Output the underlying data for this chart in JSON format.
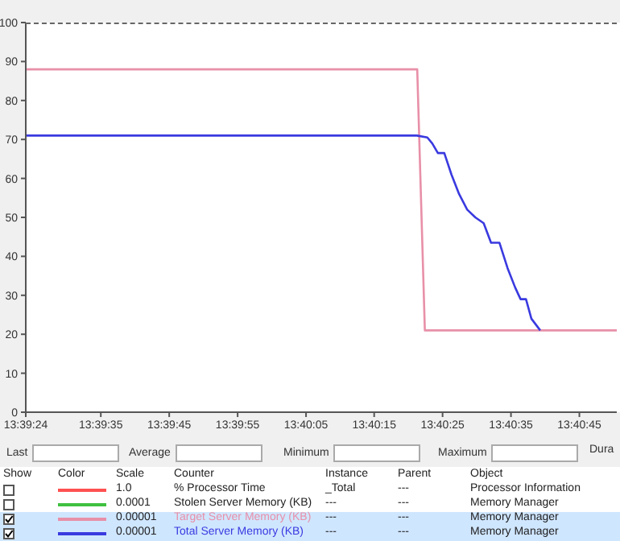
{
  "chart_data": {
    "type": "line",
    "series": [
      {
        "name": "Target Server Memory (KB)",
        "color": "#e890a8",
        "x": [
          13.65667,
          13.67258,
          13.67289,
          13.68069
        ],
        "values": [
          88,
          88,
          21,
          21
        ]
      },
      {
        "name": "Total Server Memory (KB)",
        "color": "#3a3ae0",
        "x": [
          13.65667,
          13.67256,
          13.67299,
          13.67319,
          13.67342,
          13.67368,
          13.67397,
          13.67428,
          13.67461,
          13.67494,
          13.67528,
          13.67558,
          13.67592,
          13.67625,
          13.67656,
          13.67678,
          13.677,
          13.67722,
          13.67758
        ],
        "values": [
          71,
          71,
          70.5,
          69,
          66.5,
          66.5,
          61,
          56,
          52,
          50,
          48.5,
          43.5,
          43.5,
          37,
          32,
          29,
          29,
          24,
          21
        ]
      }
    ],
    "xlim": [
      13.65667,
      13.68069
    ],
    "xticks": [
      {
        "value": 13.65667,
        "label": "13:39:24"
      },
      {
        "value": 13.65972,
        "label": "13:39:35"
      },
      {
        "value": 13.6625,
        "label": "13:39:45"
      },
      {
        "value": 13.66528,
        "label": "13:39:55"
      },
      {
        "value": 13.66806,
        "label": "13:40:05"
      },
      {
        "value": 13.67083,
        "label": "13:40:15"
      },
      {
        "value": 13.67361,
        "label": "13:40:25"
      },
      {
        "value": 13.67639,
        "label": "13:40:35"
      },
      {
        "value": 13.67917,
        "label": "13:40:45"
      }
    ],
    "ylim": [
      0,
      100
    ],
    "yticks": [
      0,
      10,
      20,
      30,
      40,
      50,
      60,
      70,
      80,
      90,
      100
    ],
    "grid": false,
    "legend": "bottom",
    "marker": "none",
    "line_style": "solid",
    "annotations": [
      "Last",
      "Average",
      "Minimum",
      "Maximum",
      "Dura",
      "Show",
      "Color",
      "Scale",
      "Counter",
      "Instance",
      "Parent",
      "Object",
      "1.0",
      "% Processor Time",
      "_Total",
      "---",
      "Processor Information",
      "0.0001",
      "Stolen Server Memory (KB)",
      "---",
      "---",
      "Memory Manager",
      "0.00001",
      "---",
      "---",
      "Memory Manager",
      "0.00001",
      "---",
      "---",
      "Memory Manager"
    ]
  }
}
